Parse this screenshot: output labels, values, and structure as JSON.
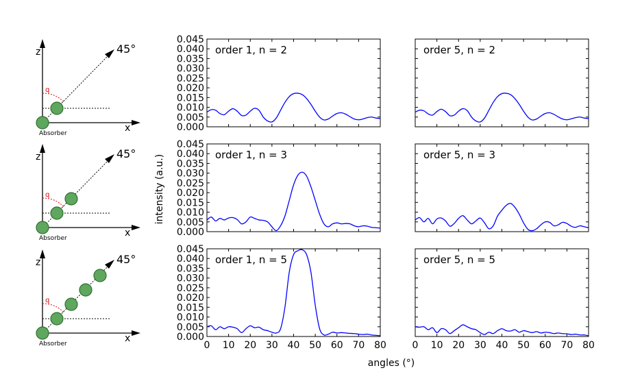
{
  "colors": {
    "line": "#0000ff",
    "sphere_fill": "#5fa65f",
    "sphere_stroke": "#2f6f2f",
    "angle_arc": "#e00000"
  },
  "figure": {
    "xlabel": "angles (°)",
    "ylabel": "intensity (a.u.)"
  },
  "diagrams": [
    {
      "z_label": "z",
      "x_label": "x",
      "angle_label": "45°",
      "q_label": "q",
      "absorber_label": "Absorber",
      "atoms_on_line": 1
    },
    {
      "z_label": "z",
      "x_label": "x",
      "angle_label": "45°",
      "q_label": "q",
      "absorber_label": "Absorber",
      "atoms_on_line": 2
    },
    {
      "z_label": "z",
      "x_label": "x",
      "angle_label": "45°",
      "q_label": "q",
      "absorber_label": "Absorber",
      "atoms_on_line": 4
    }
  ],
  "chart_data": [
    {
      "type": "line",
      "title": "order 1, n = 2",
      "xlim": [
        0,
        80
      ],
      "ylim": [
        0,
        0.045
      ],
      "xticks": [
        "0",
        "10",
        "20",
        "30",
        "40",
        "50",
        "60",
        "70",
        "80"
      ],
      "yticks": [
        "0.000",
        "0.005",
        "0.010",
        "0.015",
        "0.020",
        "0.025",
        "0.030",
        "0.035",
        "0.040",
        "0.045"
      ],
      "series": [
        {
          "x": [
            0,
            2,
            4,
            6,
            8,
            10,
            12,
            14,
            16,
            18,
            20,
            22,
            24,
            26,
            28,
            30,
            32,
            34,
            36,
            38,
            40,
            42,
            44,
            46,
            48,
            50,
            52,
            54,
            56,
            58,
            60,
            62,
            64,
            66,
            68,
            70,
            72,
            74,
            76,
            78,
            80
          ],
          "y": [
            0.0075,
            0.0088,
            0.0085,
            0.0068,
            0.0062,
            0.008,
            0.0093,
            0.008,
            0.0058,
            0.006,
            0.008,
            0.0095,
            0.0085,
            0.005,
            0.003,
            0.0025,
            0.0045,
            0.0085,
            0.0125,
            0.0155,
            0.017,
            0.0172,
            0.0165,
            0.0145,
            0.0115,
            0.008,
            0.005,
            0.0035,
            0.004,
            0.0055,
            0.0068,
            0.0072,
            0.0065,
            0.0052,
            0.004,
            0.0036,
            0.004,
            0.0047,
            0.005,
            0.0045,
            0.0042
          ]
        }
      ]
    },
    {
      "type": "line",
      "title": "order 5, n = 2",
      "xlim": [
        0,
        80
      ],
      "ylim": [
        0,
        0.045
      ],
      "xticks": [
        "0",
        "10",
        "20",
        "30",
        "40",
        "50",
        "60",
        "70",
        "80"
      ],
      "yticks": [
        "0.000",
        "0.005",
        "0.010",
        "0.015",
        "0.020",
        "0.025",
        "0.030",
        "0.035",
        "0.040",
        "0.045"
      ],
      "series": [
        {
          "x": [
            0,
            2,
            4,
            6,
            8,
            10,
            12,
            14,
            16,
            18,
            20,
            22,
            24,
            26,
            28,
            30,
            32,
            34,
            36,
            38,
            40,
            42,
            44,
            46,
            48,
            50,
            52,
            54,
            56,
            58,
            60,
            62,
            64,
            66,
            68,
            70,
            72,
            74,
            76,
            78,
            80
          ],
          "y": [
            0.0075,
            0.0085,
            0.0082,
            0.0066,
            0.006,
            0.0078,
            0.009,
            0.0078,
            0.0057,
            0.006,
            0.008,
            0.0093,
            0.0083,
            0.005,
            0.003,
            0.0025,
            0.0045,
            0.0085,
            0.0125,
            0.0155,
            0.017,
            0.0172,
            0.0165,
            0.0145,
            0.0115,
            0.008,
            0.005,
            0.0035,
            0.004,
            0.0055,
            0.0068,
            0.0072,
            0.0064,
            0.0051,
            0.004,
            0.0036,
            0.0041,
            0.0047,
            0.005,
            0.0045,
            0.0042
          ]
        }
      ]
    },
    {
      "type": "line",
      "title": "order 1, n = 3",
      "xlim": [
        0,
        80
      ],
      "ylim": [
        0,
        0.045
      ],
      "xticks": [
        "0",
        "10",
        "20",
        "30",
        "40",
        "50",
        "60",
        "70",
        "80"
      ],
      "yticks": [
        "0.000",
        "0.005",
        "0.010",
        "0.015",
        "0.020",
        "0.025",
        "0.030",
        "0.035",
        "0.040",
        "0.045"
      ],
      "series": [
        {
          "x": [
            0,
            2,
            4,
            6,
            8,
            10,
            12,
            14,
            16,
            18,
            20,
            22,
            24,
            26,
            28,
            30,
            32,
            34,
            36,
            38,
            40,
            42,
            44,
            46,
            48,
            50,
            52,
            54,
            56,
            58,
            60,
            62,
            64,
            66,
            68,
            70,
            72,
            74,
            76,
            78,
            80
          ],
          "y": [
            0.006,
            0.0075,
            0.0055,
            0.0068,
            0.006,
            0.007,
            0.0072,
            0.0062,
            0.004,
            0.005,
            0.0075,
            0.0068,
            0.006,
            0.0058,
            0.005,
            0.0025,
            0.0005,
            0.003,
            0.008,
            0.016,
            0.024,
            0.029,
            0.0305,
            0.0285,
            0.023,
            0.016,
            0.009,
            0.004,
            0.0025,
            0.004,
            0.0045,
            0.004,
            0.0042,
            0.004,
            0.003,
            0.0025,
            0.003,
            0.0028,
            0.0022,
            0.002,
            0.0018
          ]
        }
      ]
    },
    {
      "type": "line",
      "title": "order 5, n = 3",
      "xlim": [
        0,
        80
      ],
      "ylim": [
        0,
        0.045
      ],
      "xticks": [
        "0",
        "10",
        "20",
        "30",
        "40",
        "50",
        "60",
        "70",
        "80"
      ],
      "yticks": [
        "0.000",
        "0.005",
        "0.010",
        "0.015",
        "0.020",
        "0.025",
        "0.030",
        "0.035",
        "0.040",
        "0.045"
      ],
      "series": [
        {
          "x": [
            0,
            2,
            4,
            6,
            8,
            10,
            12,
            14,
            16,
            18,
            20,
            22,
            24,
            26,
            28,
            30,
            32,
            34,
            36,
            38,
            40,
            42,
            44,
            46,
            48,
            50,
            52,
            54,
            56,
            58,
            60,
            62,
            64,
            66,
            68,
            70,
            72,
            74,
            76,
            78,
            80
          ],
          "y": [
            0.006,
            0.0072,
            0.005,
            0.0068,
            0.004,
            0.0065,
            0.007,
            0.0055,
            0.0028,
            0.0042,
            0.0068,
            0.0082,
            0.006,
            0.004,
            0.0055,
            0.007,
            0.0045,
            0.0015,
            0.003,
            0.008,
            0.011,
            0.0135,
            0.0145,
            0.0125,
            0.009,
            0.0045,
            0.0012,
            0.0005,
            0.0015,
            0.0035,
            0.005,
            0.0048,
            0.003,
            0.0035,
            0.0048,
            0.0042,
            0.0028,
            0.0022,
            0.003,
            0.0025,
            0.002
          ]
        }
      ]
    },
    {
      "type": "line",
      "title": "order 1, n = 5",
      "xlim": [
        0,
        80
      ],
      "ylim": [
        0,
        0.045
      ],
      "xticks": [
        "0",
        "10",
        "20",
        "30",
        "40",
        "50",
        "60",
        "70",
        "80"
      ],
      "yticks": [
        "0.000",
        "0.005",
        "0.010",
        "0.015",
        "0.020",
        "0.025",
        "0.030",
        "0.035",
        "0.040",
        "0.045"
      ],
      "series": [
        {
          "x": [
            0,
            2,
            4,
            6,
            8,
            10,
            12,
            14,
            16,
            18,
            20,
            22,
            24,
            26,
            28,
            30,
            32,
            34,
            36,
            38,
            40,
            42,
            44,
            46,
            48,
            50,
            52,
            54,
            56,
            58,
            60,
            62,
            64,
            66,
            68,
            70,
            72,
            74,
            76,
            78,
            80
          ],
          "y": [
            0.005,
            0.0055,
            0.0035,
            0.005,
            0.004,
            0.005,
            0.0048,
            0.004,
            0.002,
            0.004,
            0.0055,
            0.0045,
            0.0048,
            0.0035,
            0.003,
            0.0022,
            0.0018,
            0.004,
            0.015,
            0.033,
            0.042,
            0.044,
            0.0445,
            0.042,
            0.033,
            0.016,
            0.004,
            0.0008,
            0.0012,
            0.0022,
            0.0018,
            0.002,
            0.0018,
            0.0016,
            0.0015,
            0.0012,
            0.001,
            0.0012,
            0.0008,
            0.0006,
            0.0004
          ]
        }
      ]
    },
    {
      "type": "line",
      "title": "order 5, n = 5",
      "xlim": [
        0,
        80
      ],
      "ylim": [
        0,
        0.045
      ],
      "xticks": [
        "0",
        "10",
        "20",
        "30",
        "40",
        "50",
        "60",
        "70",
        "80"
      ],
      "yticks": [
        "0.000",
        "0.005",
        "0.010",
        "0.015",
        "0.020",
        "0.025",
        "0.030",
        "0.035",
        "0.040",
        "0.045"
      ],
      "series": [
        {
          "x": [
            0,
            2,
            4,
            6,
            8,
            10,
            12,
            14,
            16,
            18,
            20,
            22,
            24,
            26,
            28,
            30,
            32,
            34,
            36,
            38,
            40,
            42,
            44,
            46,
            48,
            50,
            52,
            54,
            56,
            58,
            60,
            62,
            64,
            66,
            68,
            70,
            72,
            74,
            76,
            78,
            80
          ],
          "y": [
            0.005,
            0.0048,
            0.005,
            0.0035,
            0.0045,
            0.002,
            0.004,
            0.0035,
            0.0015,
            0.003,
            0.0045,
            0.006,
            0.005,
            0.004,
            0.0035,
            0.002,
            0.001,
            0.0022,
            0.0015,
            0.003,
            0.004,
            0.003,
            0.0028,
            0.0035,
            0.0022,
            0.003,
            0.0025,
            0.002,
            0.0025,
            0.0018,
            0.0022,
            0.002,
            0.0015,
            0.0018,
            0.0015,
            0.0014,
            0.001,
            0.0012,
            0.0008,
            0.0008,
            0.0004
          ]
        }
      ]
    }
  ]
}
